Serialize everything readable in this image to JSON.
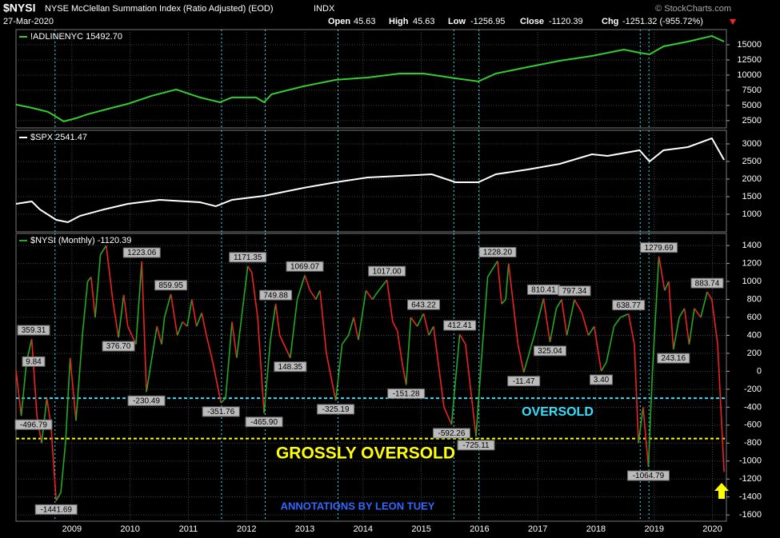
{
  "header": {
    "symbol": "$NYSI",
    "name": "NYSE McClellan Summation Index (Ratio Adjusted) (EOD)",
    "exchange": "INDX",
    "date": "27-Mar-2020",
    "open_label": "Open",
    "open": 45.63,
    "high_label": "High",
    "high": 45.63,
    "low_label": "Low",
    "low": -1256.95,
    "close_label": "Close",
    "close": -1120.39,
    "chg_label": "Chg",
    "chg": "-1251.32 (-955.72%)",
    "source": "© StockCharts.com"
  },
  "chart_data": [
    {
      "type": "line",
      "x": [
        2008.04,
        2008.31,
        2008.59,
        2008.86,
        2009.07,
        2009.27,
        2009.69,
        2009.96,
        2010.37,
        2010.79,
        2011.2,
        2011.54,
        2011.75,
        2012.16,
        2012.3,
        2012.43,
        2012.98,
        2013.53,
        2014.08,
        2014.63,
        2015.04,
        2015.59,
        2015.98,
        2016.28,
        2016.83,
        2017.38,
        2017.93,
        2018.48,
        2018.75,
        2018.92,
        2019.16,
        2019.58,
        2019.99,
        2020.2
      ],
      "series": [
        {
          "name": "!ADLINENYC 15492.70",
          "color": "#33cc33",
          "values": [
            5130,
            4600,
            3950,
            2370,
            2900,
            3550,
            4600,
            5260,
            6580,
            7630,
            6320,
            5530,
            6320,
            6320,
            5530,
            6840,
            8160,
            9210,
            9600,
            10260,
            10260,
            9470,
            8950,
            10260,
            11320,
            12370,
            13160,
            14210,
            13680,
            13420,
            14740,
            15530,
            16450,
            15530
          ]
        }
      ],
      "xlim": [
        2008.04,
        2020.24
      ],
      "ylim": [
        1300,
        17500
      ],
      "yticks": [
        2500,
        5000,
        7500,
        10000,
        12500,
        15000
      ],
      "grid": true
    },
    {
      "type": "line",
      "x": [
        2008.04,
        2008.31,
        2008.45,
        2008.73,
        2008.93,
        2009.14,
        2009.55,
        2009.96,
        2010.51,
        2011.2,
        2011.47,
        2011.75,
        2012.3,
        2012.98,
        2013.53,
        2014.08,
        2014.63,
        2015.18,
        2015.59,
        2015.98,
        2016.28,
        2016.83,
        2017.38,
        2017.93,
        2018.2,
        2018.75,
        2018.92,
        2019.16,
        2019.58,
        2019.99,
        2020.2
      ],
      "series": [
        {
          "name": "$SPX 2541.47",
          "color": "#ffffff",
          "values": [
            1295,
            1364,
            1136,
            841,
            773,
            955,
            1136,
            1295,
            1409,
            1341,
            1227,
            1409,
            1523,
            1750,
            1909,
            2045,
            2091,
            2136,
            1909,
            1909,
            2136,
            2273,
            2432,
            2705,
            2659,
            2818,
            2500,
            2818,
            2909,
            3159,
            2545
          ]
        }
      ],
      "xlim": [
        2008.04,
        2020.24
      ],
      "ylim": [
        500,
        3386
      ],
      "yticks": [
        1000,
        1500,
        2000,
        2500,
        3000
      ],
      "grid": true
    },
    {
      "type": "updown_line",
      "x": [
        2008.04,
        2008.13,
        2008.22,
        2008.31,
        2008.4,
        2008.48,
        2008.57,
        2008.64,
        2008.73,
        2008.81,
        2008.89,
        2008.97,
        2009.07,
        2009.18,
        2009.27,
        2009.33,
        2009.4,
        2009.49,
        2009.59,
        2009.7,
        2009.8,
        2009.89,
        2009.96,
        2010.1,
        2010.2,
        2010.28,
        2010.46,
        2010.54,
        2010.59,
        2010.7,
        2010.81,
        2010.9,
        2010.98,
        2011.06,
        2011.14,
        2011.23,
        2011.31,
        2011.42,
        2011.56,
        2011.64,
        2011.75,
        2011.83,
        2012.02,
        2012.09,
        2012.19,
        2012.3,
        2012.41,
        2012.5,
        2012.57,
        2012.75,
        2012.87,
        2013.0,
        2013.09,
        2013.19,
        2013.26,
        2013.37,
        2013.53,
        2013.64,
        2013.75,
        2013.84,
        2013.92,
        2014.05,
        2014.16,
        2014.27,
        2014.41,
        2014.51,
        2014.59,
        2014.67,
        2014.74,
        2014.82,
        2014.93,
        2015.04,
        2015.13,
        2015.21,
        2015.39,
        2015.52,
        2015.66,
        2015.76,
        2015.94,
        2016.03,
        2016.14,
        2016.31,
        2016.38,
        2016.45,
        2016.5,
        2016.66,
        2016.76,
        2016.94,
        2017.1,
        2017.21,
        2017.32,
        2017.41,
        2017.5,
        2017.63,
        2017.76,
        2017.87,
        2017.97,
        2018.09,
        2018.18,
        2018.31,
        2018.42,
        2018.56,
        2018.66,
        2018.73,
        2018.81,
        2018.9,
        2018.97,
        2019.08,
        2019.18,
        2019.25,
        2019.33,
        2019.43,
        2019.52,
        2019.6,
        2019.69,
        2019.8,
        2019.91,
        2019.99,
        2020.09,
        2020.2
      ],
      "series": [
        {
          "name": "$NYSI (Monthly) -1120.39",
          "color": "#22aa22",
          "down_color": "#ee2222",
          "values": [
            9.84,
            -496.79,
            100,
            359.31,
            -500,
            -800,
            -300,
            -600,
            -1441.69,
            -1350,
            -800,
            150,
            -550,
            400,
            1000,
            1050,
            600,
            1300,
            1400,
            800,
            376.7,
            850,
            500,
            300,
            1223.06,
            -230.49,
            500,
            300,
            600,
            859.95,
            400,
            550,
            500,
            800,
            500,
            650,
            400,
            100,
            -351.76,
            -300,
            550,
            150,
            1171.35,
            1100,
            600,
            -465.9,
            350,
            749.88,
            400,
            148.35,
            800,
            1069.07,
            900,
            800,
            900,
            200,
            -325.19,
            300,
            400,
            600,
            350,
            900,
            800,
            900,
            1017,
            550,
            450,
            100,
            -151.28,
            600,
            500,
            643.22,
            400,
            500,
            -400,
            -592.26,
            412.41,
            300,
            -725.11,
            100,
            1050,
            1228.2,
            750,
            800,
            1200,
            300,
            -11.47,
            400,
            810.41,
            325.04,
            700,
            800,
            400,
            797.34,
            650,
            400,
            500,
            3.4,
            100,
            500,
            600,
            638.77,
            300,
            -800,
            -400,
            -1064.79,
            0,
            1279.69,
            900,
            1000,
            243.16,
            600,
            700,
            300,
            700,
            600,
            883.74,
            800,
            300,
            -1120.39
          ],
          "value_labels": [
            "9.84",
            "-496.79",
            null,
            "359.31",
            null,
            null,
            null,
            null,
            "-1441.69",
            null,
            null,
            null,
            null,
            null,
            null,
            null,
            null,
            null,
            null,
            null,
            "376.70",
            null,
            null,
            null,
            "1223.06",
            "-230.49",
            null,
            null,
            null,
            "859.95",
            null,
            null,
            null,
            null,
            null,
            null,
            null,
            null,
            "-351.76",
            null,
            null,
            null,
            "1171.35",
            null,
            null,
            "-465.90",
            null,
            "749.88",
            null,
            "148.35",
            null,
            "1069.07",
            null,
            null,
            null,
            null,
            "-325.19",
            null,
            null,
            null,
            null,
            null,
            null,
            null,
            "1017.00",
            null,
            null,
            null,
            "-151.28",
            null,
            null,
            "643.22",
            null,
            null,
            null,
            "-592.26",
            "412.41",
            null,
            "-725.11",
            null,
            null,
            "1228.20",
            null,
            null,
            null,
            null,
            "-11.47",
            null,
            "810.41",
            "325.04",
            null,
            null,
            null,
            "797.34",
            null,
            null,
            null,
            "3.40",
            null,
            null,
            null,
            "638.77",
            null,
            null,
            null,
            "-1064.79",
            null,
            "1279.69",
            null,
            null,
            "243.16",
            null,
            null,
            null,
            null,
            null,
            "883.74",
            null,
            null,
            null
          ]
        }
      ],
      "xlim": [
        2008.04,
        2020.24
      ],
      "ylim": [
        -1670,
        1535
      ],
      "yticks": [
        -1600,
        -1400,
        -1200,
        -1000,
        -800,
        -600,
        -400,
        -200,
        0,
        200,
        400,
        600,
        800,
        1000,
        1200,
        1400
      ],
      "xticks": [
        2009,
        2010,
        2011,
        2012,
        2013,
        2014,
        2015,
        2016,
        2017,
        2018,
        2019,
        2020
      ],
      "grid": true,
      "hlines": [
        {
          "value": -300,
          "color": "#33e0ff"
        },
        {
          "value": -750,
          "color": "#ffff00"
        }
      ],
      "vlines": [
        2008.71,
        2011.57,
        2012.32,
        2013.57,
        2015.56,
        2015.99,
        2018.76,
        2018.91
      ],
      "vline_color": "#33e0ff",
      "annotations": [
        {
          "text": "OVERSOLD",
          "color": "#33e0ff"
        },
        {
          "text": "GROSSLY OVERSOLD",
          "color": "#ffff00"
        },
        {
          "text": "ANNOTATIONS BY LEON TUEY",
          "color": "#3366ff"
        }
      ]
    }
  ]
}
